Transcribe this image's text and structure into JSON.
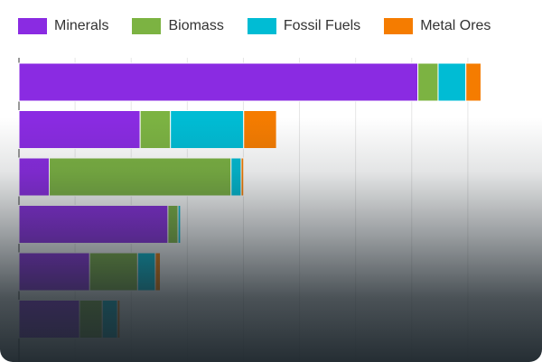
{
  "chart_data": {
    "type": "bar",
    "orientation": "horizontal",
    "stacked": true,
    "categories": [
      "",
      "",
      "",
      "",
      "",
      ""
    ],
    "series": [
      {
        "name": "Minerals",
        "color": "#8a2be2",
        "values": [
          79,
          24,
          6,
          29.5,
          14,
          12
        ]
      },
      {
        "name": "Biomass",
        "color": "#7cb342",
        "values": [
          4,
          6,
          36,
          2,
          9.5,
          4.5
        ]
      },
      {
        "name": "Fossil Fuels",
        "color": "#00bcd4",
        "values": [
          5.5,
          14.5,
          2,
          0.5,
          3.5,
          3
        ]
      },
      {
        "name": "Metal Ores",
        "color": "#f57c00",
        "values": [
          3,
          6.5,
          0.5,
          0,
          1,
          0.5
        ]
      }
    ],
    "xlim": [
      0,
      100
    ],
    "grid": true,
    "legend_position": "top"
  }
}
